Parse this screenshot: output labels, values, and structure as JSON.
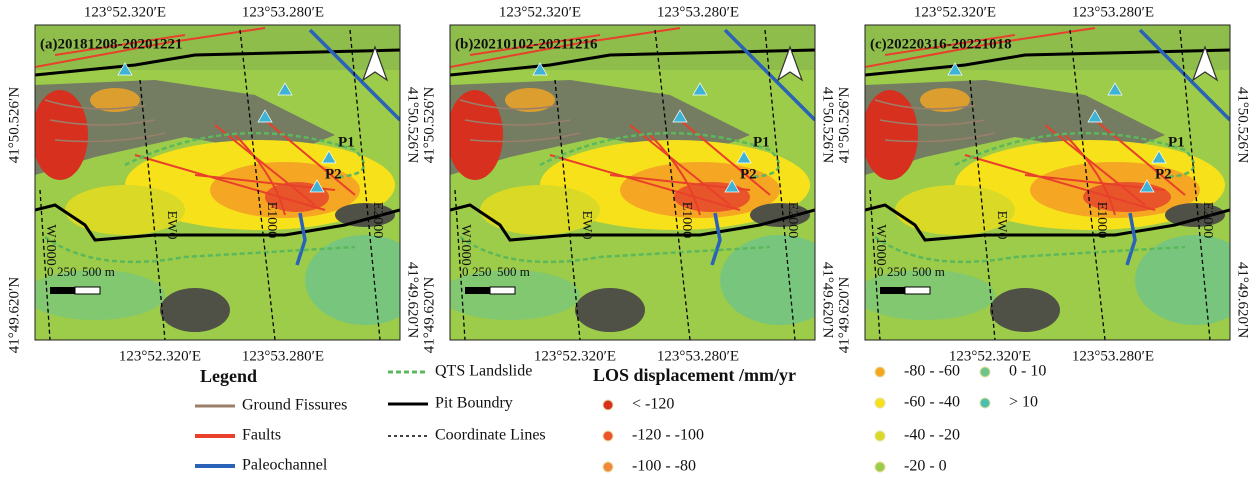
{
  "panels": [
    {
      "title": "(a)20181208-20201221"
    },
    {
      "title": "(b)20210102-20211216"
    },
    {
      "title": "(c)20220316-20221018"
    }
  ],
  "map_labels": {
    "longitudes": [
      "123°52.320′E",
      "123°53.280′E"
    ],
    "latitudes": [
      "41°50.526′N",
      "41°49.620′N"
    ],
    "lines": [
      "W1000",
      "EW0",
      "E1000",
      "E2000"
    ],
    "points": [
      "P1",
      "P2"
    ],
    "scale": [
      "0",
      "250",
      "500 m"
    ]
  },
  "legend": {
    "title": "Legend",
    "items": [
      {
        "label": "Ground Fissures",
        "color": "#9c7f6a"
      },
      {
        "label": "Faults",
        "color": "#e8402a"
      },
      {
        "label": "Paleochannel",
        "color": "#2a62b8"
      },
      {
        "label": "QTS Landslide",
        "color": "#5cb85c"
      },
      {
        "label": "Pit Boundry",
        "color": "#000000"
      },
      {
        "label": "Coordinate Lines",
        "color": "#000000"
      }
    ]
  },
  "los_legend": {
    "title": "LOS displacement /mm/yr",
    "classes": [
      {
        "label": "< -120",
        "color": "#d7301f"
      },
      {
        "label": "-120 - -100",
        "color": "#e8552a"
      },
      {
        "label": "-100 - -80",
        "color": "#f08a3a"
      },
      {
        "label": "-80 - -60",
        "color": "#f5a623"
      },
      {
        "label": "-60 - -40",
        "color": "#f7e11a"
      },
      {
        "label": "-40 - -20",
        "color": "#d9d926"
      },
      {
        "label": "-20 - 0",
        "color": "#9ccc4a"
      },
      {
        "label": "0 - 10",
        "color": "#6fc48a"
      },
      {
        "label": "> 10",
        "color": "#4bbfb0"
      }
    ]
  }
}
